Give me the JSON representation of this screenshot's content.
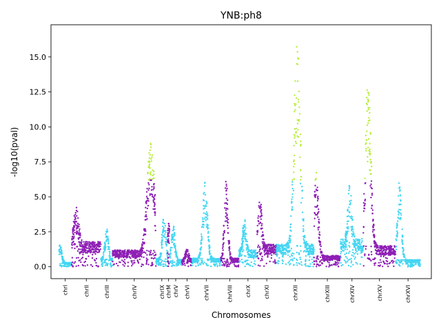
{
  "chart_data": {
    "type": "scatter",
    "title": "YNB:ph8",
    "xlabel": "Chromosomes",
    "ylabel": "-log10(pval)",
    "ylim": [
      -0.85,
      17.3
    ],
    "yticks": [
      0.0,
      2.5,
      5.0,
      7.5,
      10.0,
      12.5,
      15.0
    ],
    "ytick_labels": [
      "0.0",
      "2.5",
      "5.0",
      "7.5",
      "10.0",
      "12.5",
      "15.0"
    ],
    "grid": false,
    "legend": "none",
    "colors": {
      "odd_chromosome": "#44d6f2",
      "even_chromosome": "#8e1fb5",
      "significant": "#b8ed3c"
    },
    "significance_threshold": 6.2,
    "chromosomes": [
      {
        "name": "chrI",
        "start": 0,
        "end": 20,
        "peak": 1.6,
        "peak_pos": 0.1,
        "base": 0.3
      },
      {
        "name": "chrII",
        "start": 20,
        "end": 65,
        "peak": 4.3,
        "peak_pos": 0.15,
        "base": 1.8
      },
      {
        "name": "chrIII",
        "start": 65,
        "end": 83,
        "peak": 2.8,
        "peak_pos": 0.5,
        "base": 0.6
      },
      {
        "name": "chrIV",
        "start": 83,
        "end": 150,
        "peak": 9.2,
        "peak_pos": 0.88,
        "base": 1.2
      },
      {
        "name": "chrIX",
        "start": 150,
        "end": 168,
        "peak": 3.9,
        "peak_pos": 0.7,
        "base": 0.6
      },
      {
        "name": "chrM",
        "start": 168,
        "end": 171,
        "peak": 3.1,
        "peak_pos": 0.5,
        "base": 1.0
      },
      {
        "name": "chrV",
        "start": 171,
        "end": 190,
        "peak": 3.0,
        "peak_pos": 0.3,
        "base": 0.5
      },
      {
        "name": "chrVI",
        "start": 190,
        "end": 206,
        "peak": 1.3,
        "peak_pos": 0.5,
        "base": 0.5
      },
      {
        "name": "chrVII",
        "start": 206,
        "end": 250,
        "peak": 6.2,
        "peak_pos": 0.45,
        "base": 0.6
      },
      {
        "name": "chrVIII",
        "start": 250,
        "end": 278,
        "peak": 6.3,
        "peak_pos": 0.3,
        "base": 0.6
      },
      {
        "name": "chrX",
        "start": 278,
        "end": 306,
        "peak": 3.5,
        "peak_pos": 0.3,
        "base": 1.2
      },
      {
        "name": "chrXI",
        "start": 306,
        "end": 336,
        "peak": 5.2,
        "peak_pos": 0.15,
        "base": 1.6
      },
      {
        "name": "chrXII",
        "start": 336,
        "end": 394,
        "peak": 16.4,
        "peak_pos": 0.55,
        "base": 1.6
      },
      {
        "name": "chrXIII",
        "start": 394,
        "end": 435,
        "peak": 6.8,
        "peak_pos": 0.08,
        "base": 0.8
      },
      {
        "name": "chrXIV",
        "start": 435,
        "end": 470,
        "peak": 6.0,
        "peak_pos": 0.4,
        "base": 2.0
      },
      {
        "name": "chrXV",
        "start": 470,
        "end": 520,
        "peak": 13.9,
        "peak_pos": 0.15,
        "base": 1.5
      },
      {
        "name": "chrXVI",
        "start": 520,
        "end": 558,
        "peak": 6.1,
        "peak_pos": 0.15,
        "base": 0.5
      }
    ]
  }
}
